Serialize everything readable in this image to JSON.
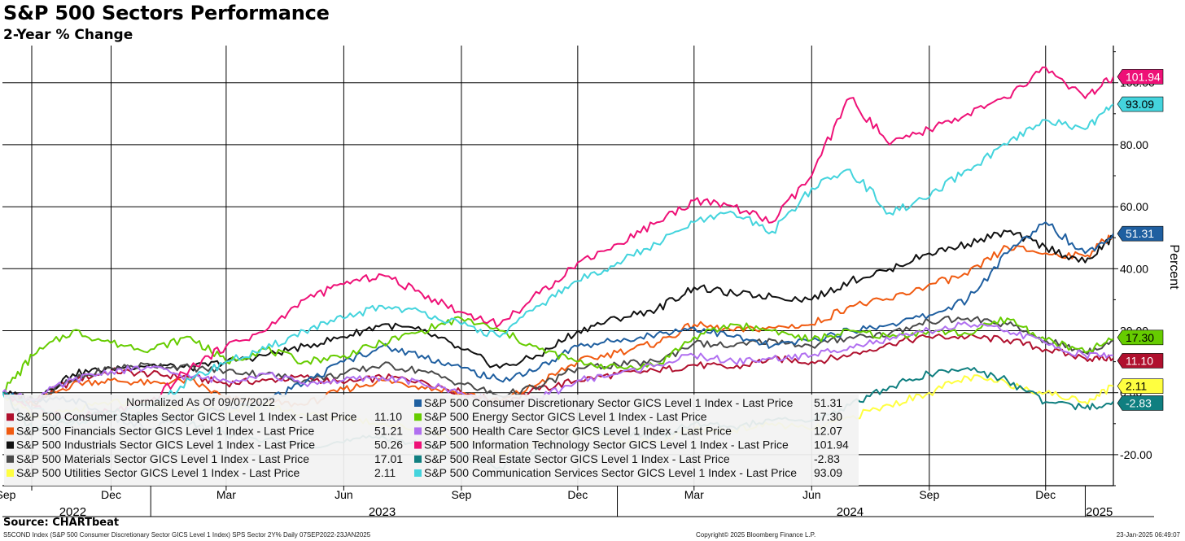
{
  "title": "S&P 500 Sectors Performance",
  "subtitle": "2-Year % Change",
  "source": "Source: CHARTbeat",
  "footer": {
    "left": "S5COND Index (S&P 500 Consumer Discretionary Sector GICS Level 1 Index) SPS Sector 2Y%  Daily 07SEP2022-23JAN2025",
    "middle": "Copyright© 2025 Bloomberg Finance L.P.",
    "right": "23-Jan-2025 06:49:07"
  },
  "chart_data": {
    "type": "line",
    "y_axis_label": "Percent",
    "ylim": [
      -30,
      112
    ],
    "y_ticks": [
      {
        "value": 100,
        "label": "100.00"
      },
      {
        "value": 80,
        "label": "80.00"
      },
      {
        "value": 60,
        "label": "60.00"
      },
      {
        "value": 40,
        "label": "40.00"
      },
      {
        "value": 20,
        "label": "20.00"
      },
      {
        "value": 0,
        "label": "0.00"
      },
      {
        "value": -20,
        "label": "-20.00"
      }
    ],
    "x_range": [
      "2022-09-07",
      "2025-01-23"
    ],
    "x_month_ticks": [
      {
        "date": "2022-09-01",
        "label": "Sep"
      },
      {
        "date": "2022-12-01",
        "label": "Dec"
      },
      {
        "date": "2023-03-01",
        "label": "Mar"
      },
      {
        "date": "2023-06-01",
        "label": "Jun"
      },
      {
        "date": "2023-09-01",
        "label": "Sep"
      },
      {
        "date": "2023-12-01",
        "label": "Dec"
      },
      {
        "date": "2024-03-01",
        "label": "Mar"
      },
      {
        "date": "2024-06-01",
        "label": "Jun"
      },
      {
        "date": "2024-09-01",
        "label": "Sep"
      },
      {
        "date": "2024-12-01",
        "label": "Dec"
      }
    ],
    "x_year_labels": [
      {
        "label": "2022",
        "date": "2022-11-01"
      },
      {
        "label": "2023",
        "date": "2023-07-01"
      },
      {
        "label": "2024",
        "date": "2024-07-01"
      },
      {
        "label": "2025",
        "date": "2025-01-12"
      }
    ],
    "x_year_boundaries": [
      "2023-01-01",
      "2024-01-01",
      "2025-01-01"
    ],
    "grid": true,
    "legend_title": "Normalized As Of 09/07/2022",
    "legend_placement": "bottom-left",
    "x": [
      "2022-09-07",
      "2022-10-01",
      "2022-11-01",
      "2022-12-01",
      "2023-01-01",
      "2023-02-01",
      "2023-03-01",
      "2023-04-01",
      "2023-05-01",
      "2023-06-01",
      "2023-07-01",
      "2023-08-01",
      "2023-09-01",
      "2023-10-01",
      "2023-11-01",
      "2023-12-01",
      "2024-01-01",
      "2024-02-01",
      "2024-03-01",
      "2024-04-01",
      "2024-05-01",
      "2024-06-01",
      "2024-07-01",
      "2024-08-01",
      "2024-09-01",
      "2024-10-01",
      "2024-11-01",
      "2024-12-01",
      "2025-01-01",
      "2025-01-23"
    ],
    "series": [
      {
        "name": "S&P 500 Consumer Staples Sector GICS Level 1 Index - Last Price",
        "legend_value": "11.10",
        "color": "#b0102e",
        "tag_text_color": "#ffffff",
        "values": [
          0,
          -3,
          4,
          7,
          6,
          5,
          3,
          4,
          5,
          3,
          5,
          4,
          0,
          -3,
          1,
          4,
          6,
          7,
          9,
          8,
          11,
          10,
          12,
          16,
          18,
          18,
          17,
          14,
          11,
          11.1
        ]
      },
      {
        "name": "S&P 500 Financials Sector GICS Level 1 Index - Last Price",
        "legend_value": "51.21",
        "color": "#f05a10",
        "tag_text_color": "#ffffff",
        "values": [
          0,
          -4,
          3,
          4,
          3,
          4,
          -2,
          -3,
          -4,
          1,
          4,
          2,
          0,
          -3,
          3,
          10,
          13,
          16,
          22,
          20,
          21,
          22,
          28,
          30,
          35,
          38,
          47,
          45,
          44,
          51.21
        ]
      },
      {
        "name": "S&P 500 Industrials Sector GICS Level 1 Index - Last Price",
        "legend_value": "50.26",
        "color": "#111111",
        "tag_text_color": "#ffffff",
        "values": [
          0,
          -2,
          6,
          8,
          9,
          8,
          10,
          12,
          15,
          18,
          22,
          20,
          14,
          8,
          12,
          20,
          24,
          27,
          34,
          32,
          31,
          30,
          36,
          40,
          45,
          48,
          52,
          47,
          42,
          50.26
        ]
      },
      {
        "name": "S&P 500 Materials Sector GICS Level 1 Index - Last Price",
        "legend_value": "17.01",
        "color": "#4a4a4a",
        "tag_text_color": "#ffffff",
        "values": [
          0,
          -3,
          4,
          8,
          9,
          8,
          7,
          6,
          4,
          6,
          9,
          7,
          3,
          -1,
          2,
          8,
          9,
          10,
          16,
          15,
          17,
          15,
          18,
          19,
          23,
          24,
          22,
          17,
          13,
          17.01
        ]
      },
      {
        "name": "S&P 500 Utilities Sector GICS Level 1 Index - Last Price",
        "legend_value": "2.11",
        "color": "#ffff40",
        "tag_text_color": "#000000",
        "values": [
          0,
          -8,
          -6,
          -3,
          -4,
          -5,
          -6,
          -4,
          -7,
          -8,
          -10,
          -12,
          -15,
          -20,
          -16,
          -13,
          -15,
          -16,
          -12,
          -12,
          -10,
          -12,
          -8,
          -4,
          0,
          5,
          3,
          0,
          -3,
          2.11
        ]
      },
      {
        "name": "S&P 500 Consumer Discretionary Sector GICS Level 1 Index - Last Price",
        "legend_value": "51.31",
        "color": "#1f5fa0",
        "tag_text_color": "#ffffff",
        "values": [
          0,
          -3,
          -2,
          -8,
          -12,
          -6,
          -5,
          -3,
          3,
          10,
          15,
          12,
          8,
          4,
          8,
          15,
          17,
          19,
          21,
          18,
          15,
          17,
          20,
          22,
          25,
          30,
          45,
          55,
          45,
          51.31
        ]
      },
      {
        "name": "S&P 500 Energy Sector GICS Level 1 Index - Last Price",
        "legend_value": "17.30",
        "color": "#66cc00",
        "tag_text_color": "#000000",
        "values": [
          0,
          12,
          20,
          16,
          14,
          18,
          10,
          14,
          10,
          12,
          16,
          20,
          24,
          20,
          14,
          10,
          8,
          9,
          18,
          22,
          20,
          17,
          20,
          18,
          20,
          19,
          24,
          17,
          13,
          17.3
        ]
      },
      {
        "name": "S&P 500 Health Care Sector GICS Level 1 Index - Last Price",
        "legend_value": "12.07",
        "color": "#b06ff0",
        "tag_text_color": "#000000",
        "values": [
          0,
          -2,
          4,
          7,
          8,
          5,
          4,
          6,
          3,
          4,
          5,
          3,
          0,
          -4,
          -2,
          4,
          6,
          9,
          12,
          10,
          11,
          12,
          15,
          17,
          20,
          22,
          20,
          16,
          12,
          12.07
        ]
      },
      {
        "name": "S&P 500 Information Technology Sector GICS Level 1 Index - Last Price",
        "legend_value": "101.94",
        "color": "#ee1177",
        "tag_text_color": "#ffffff",
        "values": [
          0,
          -5,
          -8,
          -6,
          -3,
          8,
          15,
          20,
          30,
          35,
          38,
          32,
          26,
          22,
          32,
          42,
          48,
          55,
          62,
          60,
          55,
          70,
          95,
          80,
          85,
          90,
          95,
          105,
          95,
          101.94
        ]
      },
      {
        "name": "S&P 500 Real Estate Sector GICS Level 1 Index - Last Price",
        "legend_value": "-2.83",
        "color": "#107f80",
        "tag_text_color": "#ffffff",
        "values": [
          0,
          -12,
          -9,
          -6,
          -8,
          -10,
          -14,
          -15,
          -17,
          -16,
          -14,
          -17,
          -20,
          -24,
          -18,
          -12,
          -13,
          -14,
          -10,
          -11,
          -9,
          -9,
          -4,
          2,
          6,
          8,
          4,
          -3,
          -5,
          -2.83
        ]
      },
      {
        "name": "S&P 500 Communication Services Sector GICS Level 1 Index - Last Price",
        "legend_value": "93.09",
        "color": "#44d4dd",
        "tag_text_color": "#000000",
        "values": [
          0,
          -5,
          -10,
          -8,
          -4,
          4,
          10,
          14,
          20,
          24,
          28,
          26,
          22,
          18,
          28,
          36,
          42,
          48,
          55,
          58,
          52,
          66,
          72,
          58,
          63,
          72,
          80,
          88,
          85,
          93.09
        ]
      }
    ]
  }
}
